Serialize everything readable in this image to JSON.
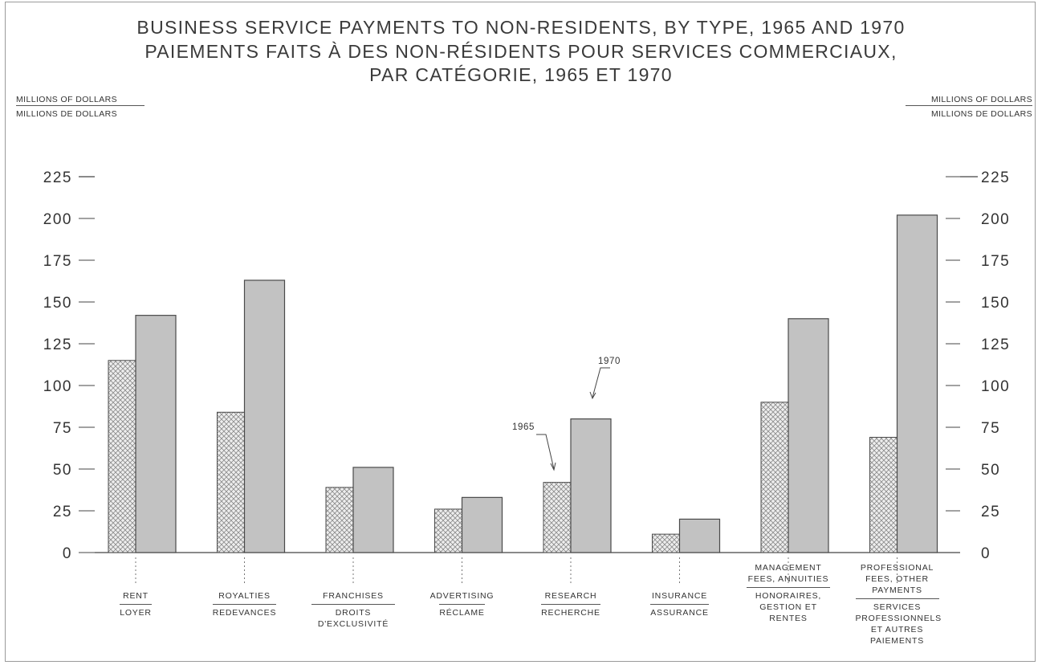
{
  "chart_data": {
    "type": "bar",
    "title": "BUSINESS SERVICE PAYMENTS TO NON-RESIDENTS, BY TYPE, 1965 AND 1970",
    "subtitle_line1": "PAIEMENTS FAITS À DES NON-RÉSIDENTS POUR SERVICES COMMERCIAUX,",
    "subtitle_line2": "PAR CATÉGORIE, 1965 ET 1970",
    "ylabel_left_en": "MILLIONS OF DOLLARS",
    "ylabel_left_fr": "MILLIONS DE DOLLARS",
    "ylabel_right_en": "MILLIONS OF DOLLARS",
    "ylabel_right_fr": "MILLIONS DE DOLLARS",
    "ylim": [
      0,
      225
    ],
    "yticks": [
      "0",
      "25",
      "50",
      "75",
      "100",
      "125",
      "150",
      "175",
      "200",
      "225"
    ],
    "categories": [
      {
        "en": "RENT",
        "fr": "LOYER"
      },
      {
        "en": "ROYALTIES",
        "fr": "REDEVANCES"
      },
      {
        "en": "FRANCHISES",
        "fr": "DROITS D'EXCLUSIVITÉ"
      },
      {
        "en": "ADVERTISING",
        "fr": "RÉCLAME"
      },
      {
        "en": "RESEARCH",
        "fr": "RECHERCHE"
      },
      {
        "en": "INSURANCE",
        "fr": "ASSURANCE"
      },
      {
        "en": "MANAGEMENT FEES, ANNUITIES",
        "fr": "HONORAIRES, GESTION ET RENTES"
      },
      {
        "en": "PROFESSIONAL FEES, OTHER PAYMENTS",
        "fr": "SERVICES PROFESSIONNELS ET AUTRES PAIEMENTS"
      }
    ],
    "series": [
      {
        "name": "1965",
        "values": [
          115,
          84,
          39,
          26,
          42,
          11,
          90,
          69
        ]
      },
      {
        "name": "1970",
        "values": [
          142,
          163,
          51,
          33,
          80,
          20,
          140,
          202
        ]
      }
    ],
    "annotations": [
      "1965",
      "1970"
    ],
    "grid": false,
    "colors": {
      "bar1965_fill": "#eeeeee",
      "bar1965_pattern": "#7a7a7a",
      "bar1970_fill": "#c2c2c2",
      "stroke": "#4a4a4a"
    }
  }
}
